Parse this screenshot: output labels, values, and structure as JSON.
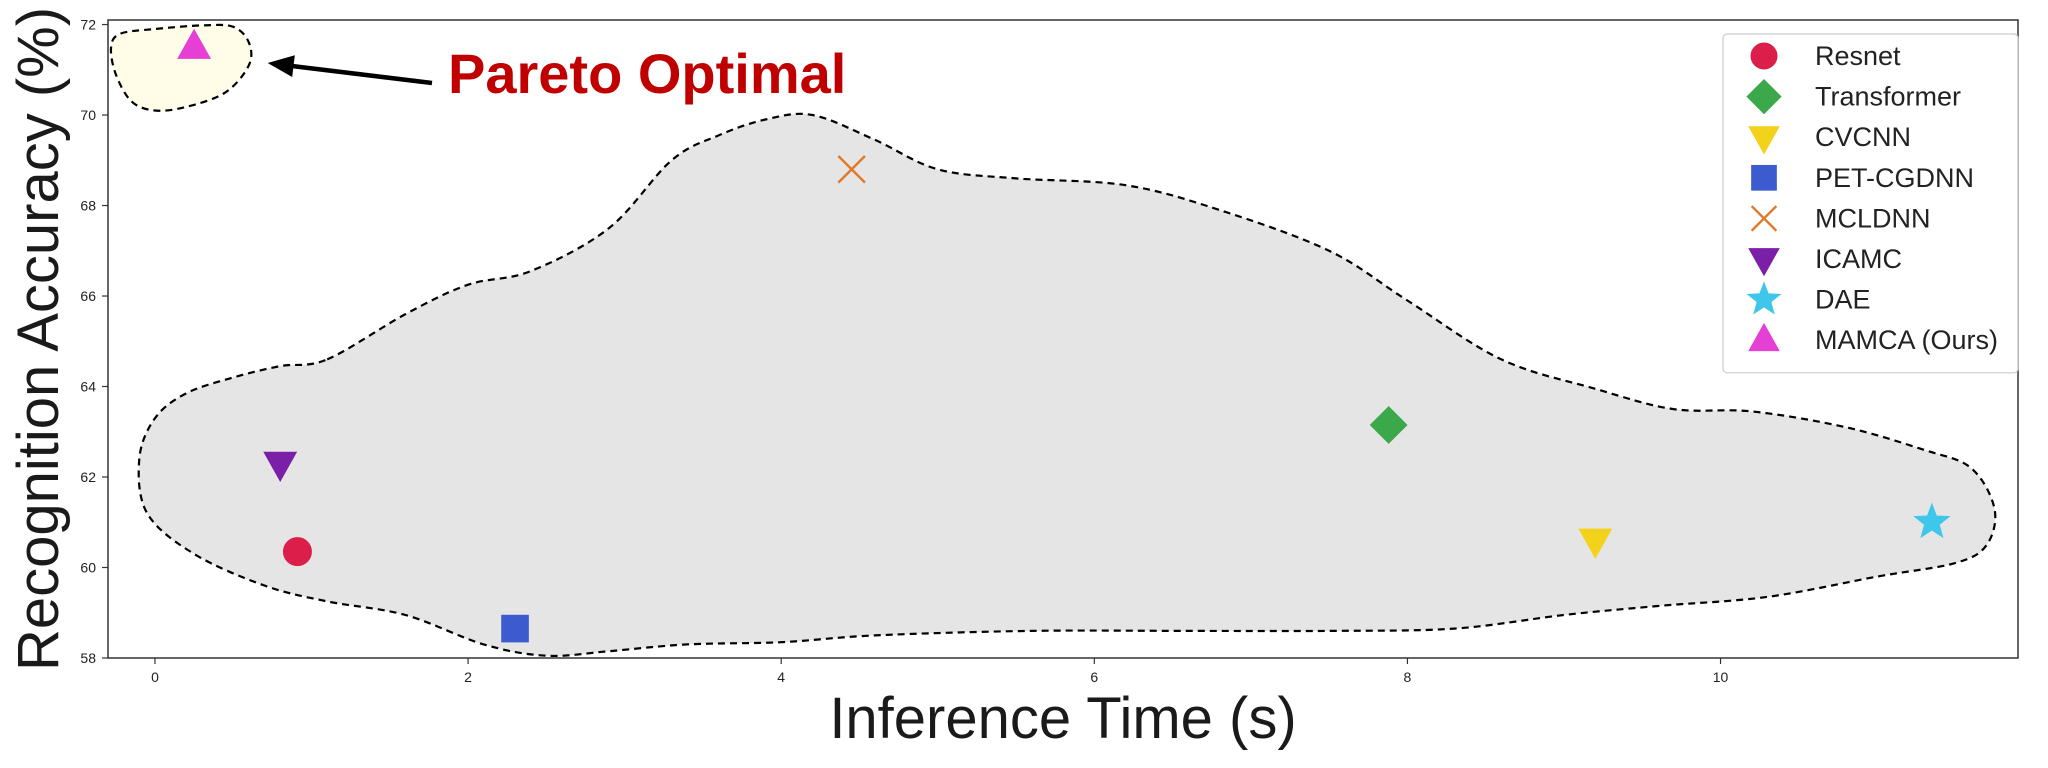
{
  "chart_data": {
    "type": "scatter",
    "title": "",
    "xlabel": "Inference Time (s)",
    "ylabel": "Recognition Accuracy (%)",
    "xlim": [
      -0.3,
      11.9
    ],
    "ylim": [
      58,
      72.1
    ],
    "x_ticks": [
      "0",
      "2",
      "4",
      "6",
      "8",
      "10"
    ],
    "y_ticks": [
      "58",
      "60",
      "62",
      "64",
      "66",
      "68",
      "70",
      "72"
    ],
    "grid": false,
    "legend_position": "top-right",
    "series": [
      {
        "name": "Resnet",
        "marker": "circle",
        "color": "#dc1f4a",
        "x": 0.91,
        "y": 60.35
      },
      {
        "name": "Transformer",
        "marker": "diamond",
        "color": "#3ba84a",
        "x": 7.88,
        "y": 63.15
      },
      {
        "name": "CVCNN",
        "marker": "triangle-down",
        "color": "#f2d21a",
        "x": 9.2,
        "y": 60.6
      },
      {
        "name": "PET-CGDNN",
        "marker": "square",
        "color": "#3b5bcf",
        "x": 2.3,
        "y": 58.65
      },
      {
        "name": "MCLDNN",
        "marker": "x",
        "color": "#e07a2a",
        "x": 4.45,
        "y": 68.8
      },
      {
        "name": "ICAMC",
        "marker": "triangle-down",
        "color": "#7b1fa8",
        "x": 0.8,
        "y": 62.3
      },
      {
        "name": "DAE",
        "marker": "star",
        "color": "#3ec7ea",
        "x": 11.35,
        "y": 61.0
      },
      {
        "name": "MAMCA (Ours)",
        "marker": "triangle-up",
        "color": "#e63fd6",
        "x": 0.25,
        "y": 71.5
      }
    ],
    "annotations": [
      {
        "text": "Pareto Optimal",
        "color": "#c00000"
      }
    ],
    "regions": [
      {
        "name": "pareto-region",
        "fill": "#fffde8",
        "outline": [
          [
            -0.22,
            71.8
          ],
          [
            0,
            71.9
          ],
          [
            0.3,
            71.98
          ],
          [
            0.5,
            71.95
          ],
          [
            0.6,
            71.6
          ],
          [
            0.6,
            71.1
          ],
          [
            0.45,
            70.5
          ],
          [
            0.2,
            70.18
          ],
          [
            0,
            70.1
          ],
          [
            -0.15,
            70.3
          ],
          [
            -0.25,
            70.9
          ],
          [
            -0.28,
            71.5
          ]
        ]
      },
      {
        "name": "baseline-region",
        "fill": "#e5e5e5",
        "outline": [
          [
            1.1,
            64.6
          ],
          [
            1.6,
            65.6
          ],
          [
            2.0,
            66.25
          ],
          [
            2.4,
            66.55
          ],
          [
            2.9,
            67.5
          ],
          [
            3.3,
            69.0
          ],
          [
            3.6,
            69.55
          ],
          [
            3.9,
            69.9
          ],
          [
            4.2,
            70.0
          ],
          [
            4.6,
            69.45
          ],
          [
            5.0,
            68.8
          ],
          [
            5.5,
            68.6
          ],
          [
            6.2,
            68.45
          ],
          [
            6.8,
            67.9
          ],
          [
            7.5,
            67.0
          ],
          [
            8.0,
            65.9
          ],
          [
            8.6,
            64.6
          ],
          [
            9.2,
            63.95
          ],
          [
            9.7,
            63.5
          ],
          [
            10.2,
            63.45
          ],
          [
            10.8,
            63.1
          ],
          [
            11.3,
            62.6
          ],
          [
            11.6,
            62.2
          ],
          [
            11.75,
            61.3
          ],
          [
            11.7,
            60.5
          ],
          [
            11.5,
            60.1
          ],
          [
            11.0,
            59.8
          ],
          [
            10.3,
            59.35
          ],
          [
            9.6,
            59.15
          ],
          [
            9.0,
            58.95
          ],
          [
            8.3,
            58.65
          ],
          [
            7.5,
            58.6
          ],
          [
            6.6,
            58.6
          ],
          [
            5.6,
            58.6
          ],
          [
            4.6,
            58.5
          ],
          [
            4.0,
            58.35
          ],
          [
            3.4,
            58.3
          ],
          [
            2.9,
            58.15
          ],
          [
            2.5,
            58.05
          ],
          [
            2.1,
            58.3
          ],
          [
            1.6,
            58.95
          ],
          [
            1.1,
            59.25
          ],
          [
            0.7,
            59.6
          ],
          [
            0.25,
            60.3
          ],
          [
            -0.05,
            61.2
          ],
          [
            -0.1,
            62.4
          ],
          [
            0.0,
            63.3
          ],
          [
            0.2,
            63.85
          ],
          [
            0.5,
            64.2
          ],
          [
            0.8,
            64.45
          ]
        ]
      }
    ]
  }
}
